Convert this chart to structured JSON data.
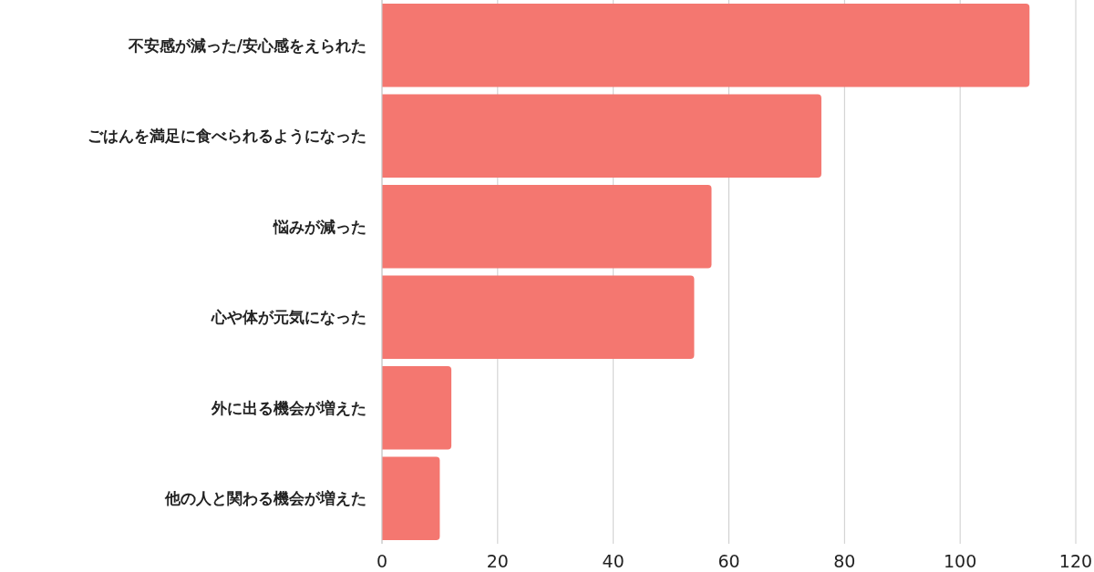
{
  "chart_data": {
    "type": "bar",
    "orientation": "horizontal",
    "categories": [
      "不安感が減った/安心感をえられた",
      "ごはんを満足に食べられるようになった",
      "悩みが減った",
      "心や体が元気になった",
      "外に出る機会が増えた",
      "他の人と関わる機会が増えた"
    ],
    "values": [
      112,
      76,
      57,
      54,
      12,
      10
    ],
    "color": "#f47770",
    "xlim": [
      0,
      120
    ],
    "xticks": [
      0,
      20,
      40,
      60,
      80,
      100,
      120
    ],
    "grid": "x"
  }
}
